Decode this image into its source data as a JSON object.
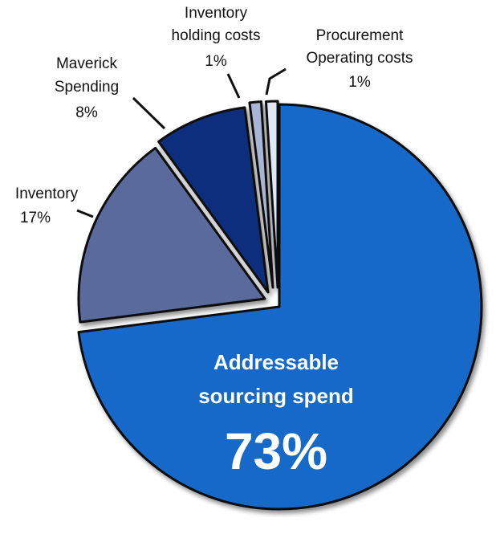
{
  "chart_data": {
    "type": "pie",
    "title": "",
    "slices": [
      {
        "id": "addressable",
        "label_lines": [
          "Addressable",
          "sourcing spend"
        ],
        "value_text": "73%",
        "value": 73,
        "color": "#1469c8"
      },
      {
        "id": "inventory",
        "label_lines": [
          "Inventory"
        ],
        "value_text": "17%",
        "value": 17,
        "color": "#5a6a9c"
      },
      {
        "id": "maverick",
        "label_lines": [
          "Maverick",
          "Spending"
        ],
        "value_text": "8%",
        "value": 8,
        "color": "#0a2f7d"
      },
      {
        "id": "holding",
        "label_lines": [
          "Inventory",
          "holding costs"
        ],
        "value_text": "1%",
        "value": 1,
        "color": "#a9b5d4"
      },
      {
        "id": "procurement",
        "label_lines": [
          "Procurement",
          "Operating costs"
        ],
        "value_text": "1%",
        "value": 1,
        "color": "#e0e8f6"
      }
    ],
    "legend": "none",
    "label_style": "external labels with leader lines; largest slice labeled inside"
  }
}
